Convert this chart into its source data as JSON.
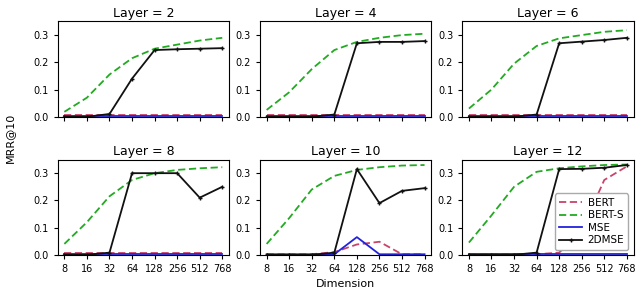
{
  "dims": [
    8,
    16,
    32,
    64,
    128,
    256,
    512,
    768
  ],
  "layers": [
    2,
    4,
    6,
    8,
    10,
    12
  ],
  "series_order": [
    "BERT",
    "BERT-S",
    "MSE",
    "2DMSE"
  ],
  "series": {
    "BERT": {
      "color": "#c8446a",
      "linestyle": "--",
      "marker": null,
      "label": "BERT",
      "linewidth": 1.3,
      "dashes": [
        4,
        2
      ]
    },
    "BERT-S": {
      "color": "#22aa22",
      "linestyle": "--",
      "marker": null,
      "label": "BERT-S",
      "linewidth": 1.3,
      "dashes": [
        4,
        2
      ]
    },
    "MSE": {
      "color": "#2222dd",
      "linestyle": "-",
      "marker": null,
      "label": "MSE",
      "linewidth": 1.3,
      "dashes": null
    },
    "2DMSE": {
      "color": "#111111",
      "linestyle": "-",
      "marker": "+",
      "label": "2DMSE",
      "linewidth": 1.3,
      "dashes": null
    }
  },
  "data": {
    "2": {
      "BERT": [
        0.005,
        0.005,
        0.005,
        0.005,
        0.005,
        0.005,
        0.005,
        0.005
      ],
      "BERT-S": [
        0.018,
        0.07,
        0.155,
        0.215,
        0.25,
        0.265,
        0.28,
        0.29
      ],
      "MSE": [
        0.002,
        0.002,
        0.002,
        0.002,
        0.002,
        0.002,
        0.002,
        0.002
      ],
      "2DMSE": [
        0.0,
        0.0,
        0.01,
        0.14,
        0.245,
        0.248,
        0.25,
        0.252
      ]
    },
    "4": {
      "BERT": [
        0.005,
        0.005,
        0.005,
        0.005,
        0.005,
        0.005,
        0.005,
        0.005
      ],
      "BERT-S": [
        0.025,
        0.09,
        0.175,
        0.245,
        0.275,
        0.29,
        0.3,
        0.305
      ],
      "MSE": [
        0.002,
        0.002,
        0.002,
        0.002,
        0.002,
        0.002,
        0.002,
        0.002
      ],
      "2DMSE": [
        0.0,
        0.0,
        0.0,
        0.008,
        0.27,
        0.275,
        0.275,
        0.278
      ]
    },
    "6": {
      "BERT": [
        0.005,
        0.005,
        0.005,
        0.005,
        0.005,
        0.005,
        0.005,
        0.005
      ],
      "BERT-S": [
        0.03,
        0.1,
        0.195,
        0.26,
        0.288,
        0.3,
        0.312,
        0.318
      ],
      "MSE": [
        0.002,
        0.002,
        0.002,
        0.002,
        0.002,
        0.002,
        0.002,
        0.002
      ],
      "2DMSE": [
        0.0,
        0.0,
        0.0,
        0.008,
        0.27,
        0.276,
        0.282,
        0.29
      ]
    },
    "8": {
      "BERT": [
        0.005,
        0.005,
        0.005,
        0.005,
        0.005,
        0.005,
        0.005,
        0.005
      ],
      "BERT-S": [
        0.04,
        0.12,
        0.215,
        0.275,
        0.3,
        0.312,
        0.318,
        0.322
      ],
      "MSE": [
        0.002,
        0.002,
        0.002,
        0.002,
        0.002,
        0.002,
        0.002,
        0.002
      ],
      "2DMSE": [
        0.0,
        0.0,
        0.008,
        0.3,
        0.3,
        0.3,
        0.21,
        0.25
      ]
    },
    "10": {
      "BERT": [
        0.002,
        0.002,
        0.002,
        0.01,
        0.038,
        0.048,
        0.002,
        0.002
      ],
      "BERT-S": [
        0.04,
        0.135,
        0.24,
        0.29,
        0.312,
        0.322,
        0.328,
        0.33
      ],
      "MSE": [
        0.002,
        0.002,
        0.002,
        0.002,
        0.065,
        0.002,
        0.002,
        0.002
      ],
      "2DMSE": [
        0.0,
        0.0,
        0.0,
        0.008,
        0.315,
        0.19,
        0.235,
        0.245
      ]
    },
    "12": {
      "BERT": [
        0.002,
        0.002,
        0.002,
        0.002,
        0.008,
        0.09,
        0.275,
        0.325
      ],
      "BERT-S": [
        0.045,
        0.145,
        0.25,
        0.305,
        0.318,
        0.325,
        0.33,
        0.332
      ],
      "MSE": [
        0.002,
        0.002,
        0.002,
        0.002,
        0.002,
        0.002,
        0.002,
        0.002
      ],
      "2DMSE": [
        0.0,
        0.0,
        0.0,
        0.008,
        0.315,
        0.316,
        0.32,
        0.33
      ]
    }
  },
  "ylim": [
    0,
    0.35
  ],
  "yticks": [
    0.0,
    0.1,
    0.2,
    0.3
  ],
  "xtick_labels": [
    "8",
    "16",
    "32",
    "64",
    "128",
    "256",
    "512",
    "768"
  ],
  "xlabel": "Dimension",
  "ylabel": "MRR@10",
  "title_fontsize": 9,
  "tick_fontsize": 7,
  "label_fontsize": 8,
  "legend_fontsize": 7.5
}
